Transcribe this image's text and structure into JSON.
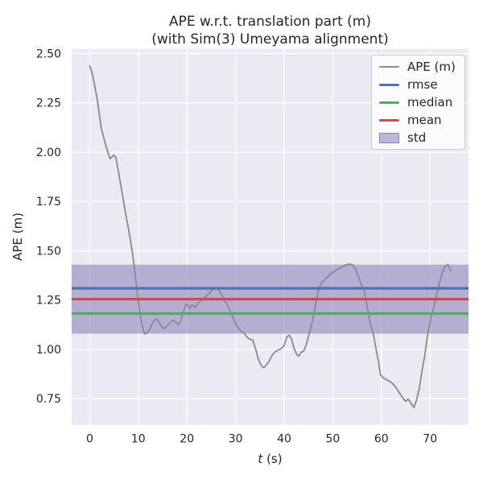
{
  "title": {
    "line1": "APE w.r.t. translation part (m)",
    "line2": "(with Sim(3) Umeyama alignment)"
  },
  "axes": {
    "xlabel_var": "t",
    "xlabel_rest": " (s)",
    "ylabel": "APE (m)"
  },
  "legend": {
    "items": [
      {
        "label": "APE (m)",
        "color": "#8a8a8a",
        "swatch": "line-thin"
      },
      {
        "label": "rmse",
        "color": "#4c72b0",
        "swatch": "line"
      },
      {
        "label": "median",
        "color": "#55a868",
        "swatch": "line"
      },
      {
        "label": "mean",
        "color": "#c44e52",
        "swatch": "line"
      },
      {
        "label": "std",
        "color": "#8172b2",
        "swatch": "patch"
      }
    ]
  },
  "theme": {
    "figure_bg": "#ffffff",
    "axes_bg": "#eaeaf2",
    "grid": "#ffffff",
    "text": "#262626"
  },
  "chart_data": {
    "type": "line",
    "title": "APE w.r.t. translation part (m)\n(with Sim(3) Umeyama alignment)",
    "xlabel": "t (s)",
    "ylabel": "APE (m)",
    "xlim": [
      -3.71,
      77.91
    ],
    "ylim": [
      0.618,
      2.524
    ],
    "x_ticks": [
      0,
      10,
      20,
      30,
      40,
      50,
      60,
      70
    ],
    "y_ticks": [
      0.75,
      1.0,
      1.25,
      1.5,
      1.75,
      2.0,
      2.25,
      2.5
    ],
    "grid": true,
    "legend_position": "upper right",
    "stats": {
      "rmse": 1.31,
      "mean": 1.255,
      "median": 1.182,
      "std": 0.175
    },
    "stat_lines": [
      {
        "name": "rmse",
        "value": 1.31,
        "color": "#4c72b0"
      },
      {
        "name": "mean",
        "value": 1.255,
        "color": "#c44e52"
      },
      {
        "name": "median",
        "value": 1.182,
        "color": "#55a868"
      }
    ],
    "std_band": {
      "center": 1.255,
      "half_width": 0.175,
      "color": "#8172b2",
      "alpha": 0.5
    },
    "series": [
      {
        "name": "APE (m)",
        "color": "#8a8a8a",
        "points": [
          [
            0,
            2.437
          ],
          [
            0.4,
            2.41
          ],
          [
            0.8,
            2.366
          ],
          [
            1.2,
            2.316
          ],
          [
            1.6,
            2.26
          ],
          [
            2.0,
            2.19
          ],
          [
            2.4,
            2.12
          ],
          [
            2.8,
            2.082
          ],
          [
            3.3,
            2.036
          ],
          [
            3.8,
            1.996
          ],
          [
            4.2,
            1.967
          ],
          [
            4.6,
            1.976
          ],
          [
            5.0,
            1.986
          ],
          [
            5.4,
            1.972
          ],
          [
            5.8,
            1.918
          ],
          [
            6.3,
            1.846
          ],
          [
            6.8,
            1.776
          ],
          [
            7.3,
            1.702
          ],
          [
            7.8,
            1.636
          ],
          [
            8.3,
            1.566
          ],
          [
            8.8,
            1.49
          ],
          [
            9.3,
            1.39
          ],
          [
            9.8,
            1.286
          ],
          [
            10.3,
            1.186
          ],
          [
            10.8,
            1.12
          ],
          [
            11.3,
            1.079
          ],
          [
            11.8,
            1.083
          ],
          [
            12.3,
            1.101
          ],
          [
            12.8,
            1.126
          ],
          [
            13.3,
            1.148
          ],
          [
            13.8,
            1.156
          ],
          [
            14.3,
            1.136
          ],
          [
            14.8,
            1.116
          ],
          [
            15.3,
            1.106
          ],
          [
            15.8,
            1.116
          ],
          [
            16.3,
            1.128
          ],
          [
            16.8,
            1.142
          ],
          [
            17.2,
            1.148
          ],
          [
            17.7,
            1.137
          ],
          [
            18.2,
            1.127
          ],
          [
            18.7,
            1.142
          ],
          [
            19.2,
            1.186
          ],
          [
            19.8,
            1.23
          ],
          [
            20.2,
            1.226
          ],
          [
            20.6,
            1.208
          ],
          [
            21.0,
            1.226
          ],
          [
            21.4,
            1.221
          ],
          [
            21.8,
            1.212
          ],
          [
            22.3,
            1.236
          ],
          [
            23.0,
            1.25
          ],
          [
            23.7,
            1.264
          ],
          [
            24.4,
            1.28
          ],
          [
            25.0,
            1.298
          ],
          [
            25.6,
            1.31
          ],
          [
            26.1,
            1.313
          ],
          [
            26.6,
            1.3
          ],
          [
            27.3,
            1.27
          ],
          [
            28.0,
            1.238
          ],
          [
            28.7,
            1.205
          ],
          [
            29.3,
            1.172
          ],
          [
            29.9,
            1.138
          ],
          [
            30.5,
            1.112
          ],
          [
            31.1,
            1.093
          ],
          [
            31.7,
            1.086
          ],
          [
            32.3,
            1.063
          ],
          [
            32.9,
            1.052
          ],
          [
            33.5,
            1.048
          ],
          [
            34.1,
            1.005
          ],
          [
            34.7,
            0.95
          ],
          [
            35.3,
            0.917
          ],
          [
            35.8,
            0.908
          ],
          [
            36.3,
            0.92
          ],
          [
            36.9,
            0.94
          ],
          [
            37.5,
            0.97
          ],
          [
            38.1,
            0.987
          ],
          [
            38.7,
            0.996
          ],
          [
            39.4,
            1.004
          ],
          [
            40.0,
            1.02
          ],
          [
            40.5,
            1.062
          ],
          [
            41.0,
            1.073
          ],
          [
            41.5,
            1.053
          ],
          [
            42.0,
            1.008
          ],
          [
            42.6,
            0.974
          ],
          [
            43.0,
            0.966
          ],
          [
            43.5,
            0.986
          ],
          [
            44.0,
            0.991
          ],
          [
            44.5,
            1.022
          ],
          [
            45.0,
            1.066
          ],
          [
            45.6,
            1.122
          ],
          [
            46.1,
            1.175
          ],
          [
            46.6,
            1.252
          ],
          [
            47.1,
            1.302
          ],
          [
            47.5,
            1.333
          ],
          [
            48.1,
            1.347
          ],
          [
            48.7,
            1.363
          ],
          [
            49.4,
            1.379
          ],
          [
            50.2,
            1.394
          ],
          [
            51.0,
            1.406
          ],
          [
            51.8,
            1.418
          ],
          [
            52.6,
            1.428
          ],
          [
            53.4,
            1.433
          ],
          [
            54.1,
            1.429
          ],
          [
            54.7,
            1.407
          ],
          [
            55.2,
            1.374
          ],
          [
            55.8,
            1.332
          ],
          [
            56.4,
            1.305
          ],
          [
            57.0,
            1.225
          ],
          [
            57.7,
            1.13
          ],
          [
            58.4,
            1.072
          ],
          [
            59.0,
            0.988
          ],
          [
            59.4,
            0.938
          ],
          [
            59.8,
            0.873
          ],
          [
            60.4,
            0.855
          ],
          [
            61.1,
            0.846
          ],
          [
            61.9,
            0.836
          ],
          [
            62.7,
            0.817
          ],
          [
            63.3,
            0.796
          ],
          [
            63.9,
            0.773
          ],
          [
            64.5,
            0.75
          ],
          [
            65.0,
            0.737
          ],
          [
            65.5,
            0.749
          ],
          [
            65.9,
            0.734
          ],
          [
            66.3,
            0.719
          ],
          [
            66.7,
            0.706
          ],
          [
            67.2,
            0.742
          ],
          [
            67.8,
            0.803
          ],
          [
            68.3,
            0.886
          ],
          [
            68.9,
            0.968
          ],
          [
            69.5,
            1.075
          ],
          [
            70.1,
            1.148
          ],
          [
            70.7,
            1.207
          ],
          [
            71.3,
            1.27
          ],
          [
            71.9,
            1.333
          ],
          [
            72.5,
            1.388
          ],
          [
            73.1,
            1.421
          ],
          [
            73.7,
            1.43
          ],
          [
            74.0,
            1.417
          ],
          [
            74.2,
            1.4
          ]
        ]
      }
    ]
  }
}
